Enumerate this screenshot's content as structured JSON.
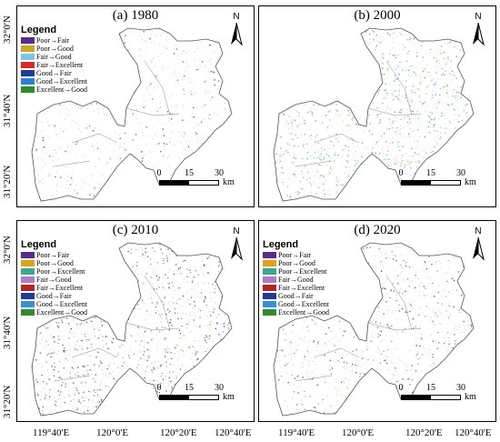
{
  "axis": {
    "lat_labels": [
      "32°0'N",
      "31°40'N",
      "31°20'N"
    ],
    "lon_labels": [
      "119°40'E",
      "120°0'E",
      "120°20'E",
      "120°40'E"
    ]
  },
  "panels": [
    {
      "title": "(a) 1980",
      "legend_title": "Legend",
      "legend": [
        {
          "label": "Poor→Fair",
          "color": "#5b2a86"
        },
        {
          "label": "Poor→Good",
          "color": "#c8a630"
        },
        {
          "label": "Fair→Good",
          "color": "#7ec6e3"
        },
        {
          "label": "Fair→Excellent",
          "color": "#d72b2b"
        },
        {
          "label": "Good→Fair",
          "color": "#1e3c96"
        },
        {
          "label": "Good→Excellent",
          "color": "#2f7fd8"
        },
        {
          "label": "Excellent→Good",
          "color": "#2e8b2e"
        }
      ]
    },
    {
      "title": "(b) 2000",
      "legend_title": "",
      "legend": []
    },
    {
      "title": "(c) 2010",
      "legend_title": "Legend",
      "legend": [
        {
          "label": "Poor→Fair",
          "color": "#5b2a86"
        },
        {
          "label": "Poor→Good",
          "color": "#e0a21a"
        },
        {
          "label": "Poor→Excellent",
          "color": "#38a890"
        },
        {
          "label": "Fair→Good",
          "color": "#b07cc6"
        },
        {
          "label": "Fair→Excellent",
          "color": "#b3261e"
        },
        {
          "label": "Good→Fair",
          "color": "#1e3c96"
        },
        {
          "label": "Good→Excellent",
          "color": "#3a8fd9"
        },
        {
          "label": "Excellent→Good",
          "color": "#2e8b2e"
        }
      ]
    },
    {
      "title": "(d) 2020",
      "legend_title": "Legend",
      "legend": [
        {
          "label": "Poor→Fair",
          "color": "#5b2a86"
        },
        {
          "label": "Poor→Good",
          "color": "#e0a21a"
        },
        {
          "label": "Poor→Excellent",
          "color": "#38a890"
        },
        {
          "label": "Fair→Good",
          "color": "#b07cc6"
        },
        {
          "label": "Fair→Excellent",
          "color": "#b3261e"
        },
        {
          "label": "Good→Fair",
          "color": "#1e3c96"
        },
        {
          "label": "Good→Excellent",
          "color": "#3a8fd9"
        },
        {
          "label": "Excellent→Good",
          "color": "#2e8b2e"
        }
      ]
    }
  ],
  "north_label": "N",
  "scale": {
    "ticks": [
      "0",
      "15",
      "30"
    ],
    "unit": "km"
  },
  "colors": {
    "boundary": "#555555",
    "river": "#8a8a8a",
    "speckle_gray": "#c8c8c8"
  }
}
